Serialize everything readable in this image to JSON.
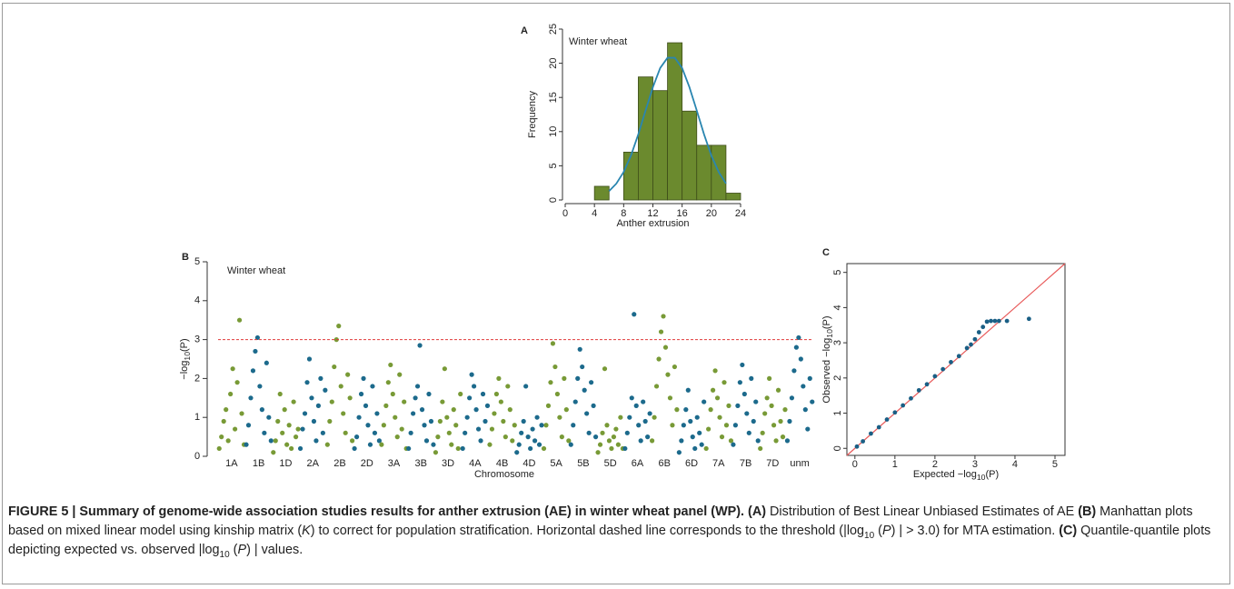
{
  "chart_data": [
    {
      "type": "histogram",
      "panel_label": "A",
      "title": "Winter wheat",
      "xlabel": "Anther extrusion",
      "ylabel": "Frequency",
      "bins": [
        4,
        6,
        8,
        10,
        12,
        14,
        16,
        18,
        20,
        22,
        24
      ],
      "values": [
        2,
        0,
        7,
        18,
        16,
        23,
        13,
        8,
        8,
        1
      ],
      "color": "#6b8a2e",
      "curve": {
        "color": "#2a86b0",
        "x": [
          6,
          7,
          8,
          9,
          10,
          11,
          12,
          13,
          14,
          15,
          16,
          17,
          18,
          19,
          20,
          21,
          22
        ],
        "values": [
          1.3,
          2.4,
          4.1,
          6.5,
          9.6,
          13.1,
          16.5,
          19.3,
          20.8,
          20.8,
          19.3,
          16.5,
          13.1,
          9.6,
          6.5,
          4.1,
          2.4
        ]
      },
      "xlim": [
        0,
        24
      ],
      "xticks": [
        0,
        4,
        8,
        12,
        16,
        20,
        24
      ],
      "ylim": [
        0,
        25
      ],
      "yticks": [
        0,
        5,
        10,
        15,
        20,
        25
      ]
    },
    {
      "type": "manhattan",
      "panel_label": "B",
      "title": "Winter wheat",
      "xlabel": "Chromosome",
      "ylabel": {
        "main": "−log",
        "sub": "10",
        "tail": "(P)"
      },
      "ylim": [
        0,
        5
      ],
      "yticks": [
        0,
        1,
        2,
        3,
        4,
        5
      ],
      "threshold": 3,
      "threshold_color": "#e03a3a",
      "chromosomes": [
        {
          "label": "1A",
          "color": "#789a36",
          "values": [
            0.2,
            0.5,
            0.9,
            1.2,
            0.4,
            1.6,
            2.25,
            0.7,
            1.9,
            3.5,
            1.1,
            0.3
          ]
        },
        {
          "label": "1B",
          "color": "#1c6a8c",
          "values": [
            0.3,
            0.8,
            1.5,
            2.2,
            2.7,
            3.05,
            1.8,
            1.2,
            0.6,
            2.4,
            1.0,
            0.4
          ]
        },
        {
          "label": "1D",
          "color": "#789a36",
          "values": [
            0.1,
            0.4,
            0.9,
            1.6,
            0.6,
            1.2,
            0.3,
            0.8,
            0.2,
            1.4,
            0.5,
            0.7
          ]
        },
        {
          "label": "2A",
          "color": "#1c6a8c",
          "values": [
            0.2,
            0.7,
            1.1,
            1.9,
            2.5,
            1.5,
            0.9,
            0.4,
            1.3,
            2.0,
            0.6,
            1.7
          ]
        },
        {
          "label": "2B",
          "color": "#789a36",
          "values": [
            0.3,
            0.9,
            1.4,
            2.3,
            3.0,
            3.35,
            1.8,
            1.1,
            0.6,
            2.1,
            1.5,
            0.4
          ]
        },
        {
          "label": "2D",
          "color": "#1c6a8c",
          "values": [
            0.2,
            0.5,
            1.0,
            1.6,
            2.0,
            1.3,
            0.8,
            0.3,
            1.8,
            0.6,
            1.1,
            0.4
          ]
        },
        {
          "label": "3A",
          "color": "#789a36",
          "values": [
            0.3,
            0.8,
            1.3,
            1.9,
            2.35,
            1.6,
            1.0,
            0.5,
            2.1,
            0.7,
            1.4,
            0.2
          ]
        },
        {
          "label": "3B",
          "color": "#1c6a8c",
          "values": [
            0.2,
            0.6,
            1.1,
            1.5,
            1.8,
            2.85,
            1.2,
            0.8,
            0.4,
            1.6,
            0.9,
            0.3
          ]
        },
        {
          "label": "3D",
          "color": "#789a36",
          "values": [
            0.1,
            0.5,
            0.9,
            1.4,
            2.25,
            1.0,
            0.6,
            0.3,
            1.2,
            0.8,
            0.2,
            1.6
          ]
        },
        {
          "label": "4A",
          "color": "#1c6a8c",
          "values": [
            0.2,
            0.6,
            1.0,
            1.5,
            2.1,
            1.8,
            1.2,
            0.7,
            0.4,
            1.6,
            0.9,
            1.3
          ]
        },
        {
          "label": "4B",
          "color": "#789a36",
          "values": [
            0.3,
            0.7,
            1.1,
            1.6,
            2.0,
            1.4,
            0.9,
            0.5,
            1.8,
            1.2,
            0.4,
            0.8
          ]
        },
        {
          "label": "4D",
          "color": "#1c6a8c",
          "values": [
            0.1,
            0.3,
            0.6,
            0.9,
            1.8,
            0.5,
            0.2,
            0.7,
            0.4,
            1.0,
            0.3,
            0.8
          ]
        },
        {
          "label": "5A",
          "color": "#789a36",
          "values": [
            0.2,
            0.8,
            1.3,
            1.9,
            2.9,
            2.3,
            1.6,
            1.0,
            0.5,
            2.0,
            1.2,
            0.4
          ]
        },
        {
          "label": "5B",
          "color": "#1c6a8c",
          "values": [
            0.3,
            0.8,
            1.4,
            2.0,
            2.75,
            2.3,
            1.7,
            1.1,
            0.6,
            1.9,
            1.3,
            0.5
          ]
        },
        {
          "label": "5D",
          "color": "#789a36",
          "values": [
            0.1,
            0.3,
            0.6,
            2.25,
            0.8,
            0.4,
            0.2,
            0.5,
            0.7,
            0.3,
            1.0,
            0.2
          ]
        },
        {
          "label": "6A",
          "color": "#1c6a8c",
          "values": [
            0.2,
            0.6,
            1.0,
            1.5,
            3.65,
            1.3,
            0.8,
            0.4,
            1.4,
            0.9,
            0.5,
            1.1
          ]
        },
        {
          "label": "6B",
          "color": "#789a36",
          "values": [
            0.4,
            1.0,
            1.8,
            2.5,
            3.2,
            3.6,
            2.8,
            2.1,
            1.5,
            0.8,
            2.3,
            1.2
          ]
        },
        {
          "label": "6D",
          "color": "#1c6a8c",
          "values": [
            0.1,
            0.4,
            0.8,
            1.2,
            1.7,
            0.9,
            0.5,
            0.2,
            1.0,
            0.6,
            0.3,
            1.4
          ]
        },
        {
          "label": "7A",
          "color": "#789a36",
          "values": [
            0.2,
            0.7,
            1.2,
            1.7,
            2.2,
            1.5,
            1.0,
            0.5,
            1.9,
            0.8,
            1.3,
            0.4
          ]
        },
        {
          "label": "7B",
          "color": "#1c6a8c",
          "values": [
            0.3,
            0.8,
            1.3,
            1.9,
            2.35,
            1.6,
            1.1,
            0.6,
            2.0,
            0.9,
            1.4,
            0.4
          ]
        },
        {
          "label": "7D",
          "color": "#789a36",
          "values": [
            0.2,
            0.6,
            1.1,
            1.5,
            2.0,
            1.3,
            0.8,
            0.4,
            1.7,
            0.9,
            0.5,
            1.2
          ]
        },
        {
          "label": "unm",
          "color": "#1c6a8c",
          "values": [
            0.4,
            0.9,
            1.5,
            2.2,
            2.8,
            3.05,
            2.5,
            1.8,
            1.2,
            0.7,
            2.0,
            1.4
          ]
        }
      ]
    },
    {
      "type": "qq",
      "panel_label": "C",
      "xlabel": {
        "main": "Expected  −log",
        "sub": "10",
        "tail": "(P)"
      },
      "ylabel": {
        "main": "Observed  −log",
        "sub": "10",
        "tail": "(P)"
      },
      "x": [
        0.05,
        0.2,
        0.4,
        0.6,
        0.8,
        1.0,
        1.2,
        1.4,
        1.6,
        1.8,
        2.0,
        2.2,
        2.4,
        2.6,
        2.8,
        2.9,
        3.0,
        3.1,
        3.2,
        3.3,
        3.4,
        3.5,
        3.6,
        3.8,
        4.35
      ],
      "values": [
        0.05,
        0.2,
        0.42,
        0.6,
        0.82,
        1.02,
        1.22,
        1.42,
        1.65,
        1.82,
        2.05,
        2.25,
        2.45,
        2.62,
        2.85,
        2.95,
        3.1,
        3.3,
        3.45,
        3.6,
        3.62,
        3.62,
        3.62,
        3.62,
        3.68
      ],
      "color": "#1a5f85",
      "line_color": "#e85a5a",
      "xlim": [
        -0.2,
        5.25
      ],
      "xticks": [
        0,
        1,
        2,
        3,
        4,
        5
      ],
      "ylim": [
        -0.2,
        5.25
      ],
      "yticks": [
        0,
        1,
        2,
        3,
        4,
        5
      ]
    }
  ],
  "caption": {
    "segments": [
      {
        "text": "FIGURE 5 | Summary of genome-wide association studies results for anther extrusion (AE) in winter wheat panel (WP).",
        "style": "bold"
      },
      {
        "text": " ",
        "style": "normal"
      },
      {
        "text": "(A)",
        "style": "bold"
      },
      {
        "text": " Distribution of Best Linear Unbiased Estimates of AE ",
        "style": "normal"
      },
      {
        "text": "(B)",
        "style": "bold"
      },
      {
        "text": " Manhattan plots based on mixed linear model using kinship matrix (",
        "style": "normal"
      },
      {
        "text": "K",
        "style": "italic"
      },
      {
        "text": ") to correct for population stratification. Horizontal dashed line corresponds to the threshold (|log",
        "style": "normal"
      },
      {
        "text": "10",
        "style": "sub"
      },
      {
        "text": " (",
        "style": "normal"
      },
      {
        "text": "P",
        "style": "italic"
      },
      {
        "text": ") | > 3.0) for MTA estimation. ",
        "style": "normal"
      },
      {
        "text": "(C)",
        "style": "bold"
      },
      {
        "text": " Quantile-quantile plots depicting expected vs. observed |log",
        "style": "normal"
      },
      {
        "text": "10",
        "style": "sub"
      },
      {
        "text": " (",
        "style": "normal"
      },
      {
        "text": "P",
        "style": "italic"
      },
      {
        "text": ") | values.",
        "style": "normal"
      }
    ]
  }
}
